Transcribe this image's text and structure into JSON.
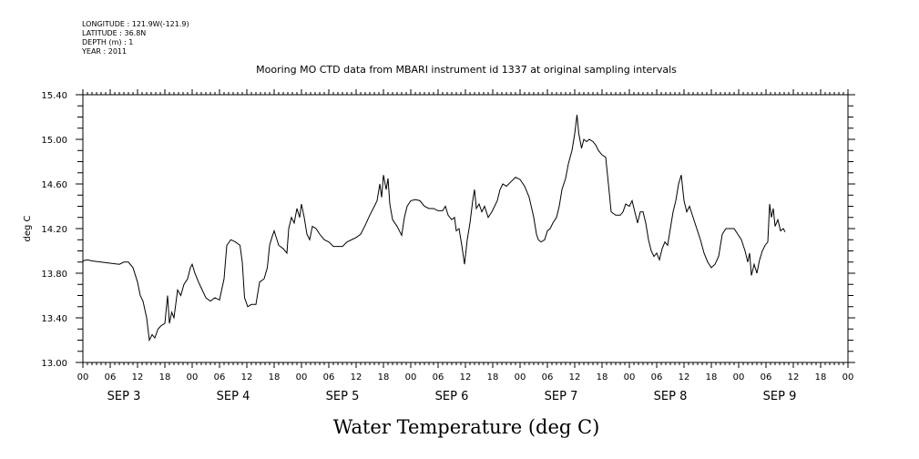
{
  "meta": {
    "longitude": "LONGITUDE : 121.9W(-121.9)",
    "latitude": "LATITUDE : 36.8N",
    "depth": "DEPTH (m) : 1",
    "year": "YEAR : 2011"
  },
  "chart_data": {
    "type": "line",
    "title": "Mooring MO CTD data from MBARI instrument id 1337 at original sampling intervals",
    "ylabel": "deg C",
    "xlabel_main": "Water Temperature (deg C)",
    "ylim": [
      13.0,
      15.4
    ],
    "y_ticks": [
      "13.00",
      "13.40",
      "13.80",
      "14.20",
      "14.60",
      "15.00",
      "15.40"
    ],
    "hour_ticks": [
      "00",
      "06",
      "12",
      "18",
      "00",
      "06",
      "12",
      "18",
      "00",
      "06",
      "12",
      "18",
      "00",
      "06",
      "12",
      "18",
      "00",
      "06",
      "12",
      "18",
      "00",
      "06",
      "12",
      "18",
      "00",
      "06",
      "12",
      "18",
      "00"
    ],
    "day_labels": [
      "SEP  3",
      "SEP  4",
      "SEP  5",
      "SEP  6",
      "SEP  7",
      "SEP  8",
      "SEP  9"
    ],
    "x_unit": "hours since 2011-09-03 00:00",
    "xlim": [
      0,
      168
    ],
    "series": [
      {
        "values": [
          [
            0,
            13.91
          ],
          [
            1,
            13.92
          ],
          [
            2,
            13.91
          ],
          [
            4,
            13.9
          ],
          [
            6,
            13.89
          ],
          [
            8,
            13.88
          ],
          [
            9,
            13.9
          ],
          [
            10,
            13.9
          ],
          [
            11,
            13.85
          ],
          [
            12,
            13.72
          ],
          [
            12.6,
            13.6
          ],
          [
            13.2,
            13.55
          ],
          [
            14,
            13.4
          ],
          [
            14.6,
            13.2
          ],
          [
            15.2,
            13.25
          ],
          [
            15.8,
            13.22
          ],
          [
            16.5,
            13.3
          ],
          [
            17.2,
            13.33
          ],
          [
            18,
            13.35
          ],
          [
            18.6,
            13.6
          ],
          [
            19,
            13.35
          ],
          [
            19.5,
            13.45
          ],
          [
            20,
            13.4
          ],
          [
            20.8,
            13.65
          ],
          [
            21.5,
            13.6
          ],
          [
            22.2,
            13.7
          ],
          [
            23,
            13.75
          ],
          [
            23.6,
            13.85
          ],
          [
            24,
            13.88
          ],
          [
            24.6,
            13.8
          ],
          [
            25.4,
            13.72
          ],
          [
            26.2,
            13.65
          ],
          [
            27,
            13.58
          ],
          [
            28,
            13.55
          ],
          [
            29,
            13.58
          ],
          [
            30,
            13.56
          ],
          [
            31,
            13.75
          ],
          [
            31.6,
            14.05
          ],
          [
            32.5,
            14.1
          ],
          [
            33.5,
            14.08
          ],
          [
            34.5,
            14.05
          ],
          [
            35,
            13.9
          ],
          [
            35.5,
            13.58
          ],
          [
            36.2,
            13.5
          ],
          [
            37,
            13.52
          ],
          [
            38,
            13.52
          ],
          [
            38.8,
            13.72
          ],
          [
            39.8,
            13.75
          ],
          [
            40.5,
            13.85
          ],
          [
            41,
            14.05
          ],
          [
            41.5,
            14.12
          ],
          [
            42,
            14.18
          ],
          [
            43,
            14.05
          ],
          [
            44,
            14.02
          ],
          [
            44.8,
            13.98
          ],
          [
            45.2,
            14.2
          ],
          [
            45.8,
            14.3
          ],
          [
            46.4,
            14.25
          ],
          [
            47,
            14.38
          ],
          [
            47.6,
            14.3
          ],
          [
            48,
            14.42
          ],
          [
            48.6,
            14.3
          ],
          [
            49.2,
            14.15
          ],
          [
            49.8,
            14.1
          ],
          [
            50.4,
            14.22
          ],
          [
            51.2,
            14.2
          ],
          [
            52,
            14.15
          ],
          [
            53,
            14.1
          ],
          [
            54,
            14.08
          ],
          [
            55,
            14.04
          ],
          [
            56,
            14.04
          ],
          [
            57,
            14.04
          ],
          [
            58,
            14.08
          ],
          [
            59,
            14.1
          ],
          [
            60,
            14.12
          ],
          [
            61,
            14.15
          ],
          [
            62,
            14.23
          ],
          [
            63,
            14.32
          ],
          [
            64,
            14.4
          ],
          [
            64.6,
            14.45
          ],
          [
            65.2,
            14.6
          ],
          [
            65.6,
            14.48
          ],
          [
            66,
            14.68
          ],
          [
            66.6,
            14.55
          ],
          [
            67,
            14.65
          ],
          [
            67.4,
            14.42
          ],
          [
            68,
            14.28
          ],
          [
            69,
            14.22
          ],
          [
            70,
            14.14
          ],
          [
            70.6,
            14.3
          ],
          [
            71.2,
            14.4
          ],
          [
            72,
            14.45
          ],
          [
            73,
            14.46
          ],
          [
            74,
            14.45
          ],
          [
            75,
            14.4
          ],
          [
            76,
            14.38
          ],
          [
            77,
            14.38
          ],
          [
            78,
            14.36
          ],
          [
            79,
            14.36
          ],
          [
            79.6,
            14.4
          ],
          [
            80.2,
            14.32
          ],
          [
            81,
            14.28
          ],
          [
            81.6,
            14.3
          ],
          [
            82,
            14.18
          ],
          [
            82.6,
            14.2
          ],
          [
            83.2,
            14.05
          ],
          [
            83.8,
            13.88
          ],
          [
            84.4,
            14.1
          ],
          [
            85,
            14.25
          ],
          [
            85.6,
            14.45
          ],
          [
            86,
            14.55
          ],
          [
            86.4,
            14.38
          ],
          [
            87,
            14.42
          ],
          [
            87.6,
            14.35
          ],
          [
            88.2,
            14.4
          ],
          [
            89,
            14.3
          ],
          [
            89.8,
            14.35
          ],
          [
            90.4,
            14.4
          ],
          [
            91,
            14.45
          ],
          [
            91.6,
            14.55
          ],
          [
            92.2,
            14.6
          ],
          [
            93,
            14.58
          ],
          [
            94,
            14.62
          ],
          [
            95,
            14.66
          ],
          [
            96,
            14.64
          ],
          [
            97,
            14.58
          ],
          [
            98,
            14.48
          ],
          [
            99,
            14.3
          ],
          [
            99.6,
            14.15
          ],
          [
            100,
            14.1
          ],
          [
            100.6,
            14.08
          ],
          [
            101.4,
            14.1
          ],
          [
            102,
            14.18
          ],
          [
            102.6,
            14.2
          ],
          [
            103.2,
            14.25
          ],
          [
            104,
            14.3
          ],
          [
            104.6,
            14.4
          ],
          [
            105.2,
            14.55
          ],
          [
            106,
            14.65
          ],
          [
            106.6,
            14.78
          ],
          [
            107.4,
            14.9
          ],
          [
            108,
            15.05
          ],
          [
            108.5,
            15.22
          ],
          [
            108.9,
            15.05
          ],
          [
            109.5,
            14.92
          ],
          [
            110,
            15.0
          ],
          [
            110.6,
            14.98
          ],
          [
            111.2,
            15.0
          ],
          [
            112,
            14.98
          ],
          [
            112.6,
            14.95
          ],
          [
            113.2,
            14.9
          ],
          [
            114,
            14.86
          ],
          [
            114.8,
            14.84
          ],
          [
            115.4,
            14.6
          ],
          [
            116,
            14.35
          ],
          [
            117,
            14.32
          ],
          [
            118,
            14.32
          ],
          [
            118.6,
            14.35
          ],
          [
            119.2,
            14.42
          ],
          [
            120,
            14.4
          ],
          [
            120.6,
            14.45
          ],
          [
            121.2,
            14.35
          ],
          [
            121.8,
            14.25
          ],
          [
            122.4,
            14.35
          ],
          [
            123,
            14.35
          ],
          [
            123.6,
            14.25
          ],
          [
            124.2,
            14.1
          ],
          [
            124.8,
            14.0
          ],
          [
            125.4,
            13.95
          ],
          [
            126,
            13.98
          ],
          [
            126.6,
            13.92
          ],
          [
            127.2,
            14.02
          ],
          [
            127.8,
            14.08
          ],
          [
            128.4,
            14.05
          ],
          [
            129,
            14.2
          ],
          [
            129.6,
            14.35
          ],
          [
            130.2,
            14.45
          ],
          [
            130.8,
            14.6
          ],
          [
            131.4,
            14.68
          ],
          [
            132,
            14.45
          ],
          [
            132.6,
            14.35
          ],
          [
            133.2,
            14.4
          ],
          [
            134,
            14.3
          ],
          [
            134.8,
            14.2
          ],
          [
            135.6,
            14.1
          ],
          [
            136.4,
            13.98
          ],
          [
            137.2,
            13.9
          ],
          [
            138,
            13.85
          ],
          [
            138.8,
            13.88
          ],
          [
            139.6,
            13.95
          ],
          [
            140.4,
            14.15
          ],
          [
            141.2,
            14.2
          ],
          [
            142,
            14.2
          ],
          [
            143,
            14.2
          ],
          [
            143.8,
            14.15
          ],
          [
            144.6,
            14.1
          ],
          [
            145.4,
            14.0
          ],
          [
            146,
            13.9
          ],
          [
            146.4,
            13.98
          ],
          [
            146.8,
            13.78
          ],
          [
            147.4,
            13.88
          ],
          [
            148,
            13.8
          ],
          [
            148.6,
            13.92
          ],
          [
            149.2,
            14.0
          ],
          [
            149.8,
            14.05
          ],
          [
            150.4,
            14.08
          ],
          [
            150.8,
            14.42
          ],
          [
            151.2,
            14.3
          ],
          [
            151.6,
            14.38
          ],
          [
            152,
            14.22
          ],
          [
            152.6,
            14.28
          ],
          [
            153.2,
            14.18
          ],
          [
            153.8,
            14.2
          ],
          [
            154.2,
            14.17
          ]
        ]
      }
    ]
  }
}
